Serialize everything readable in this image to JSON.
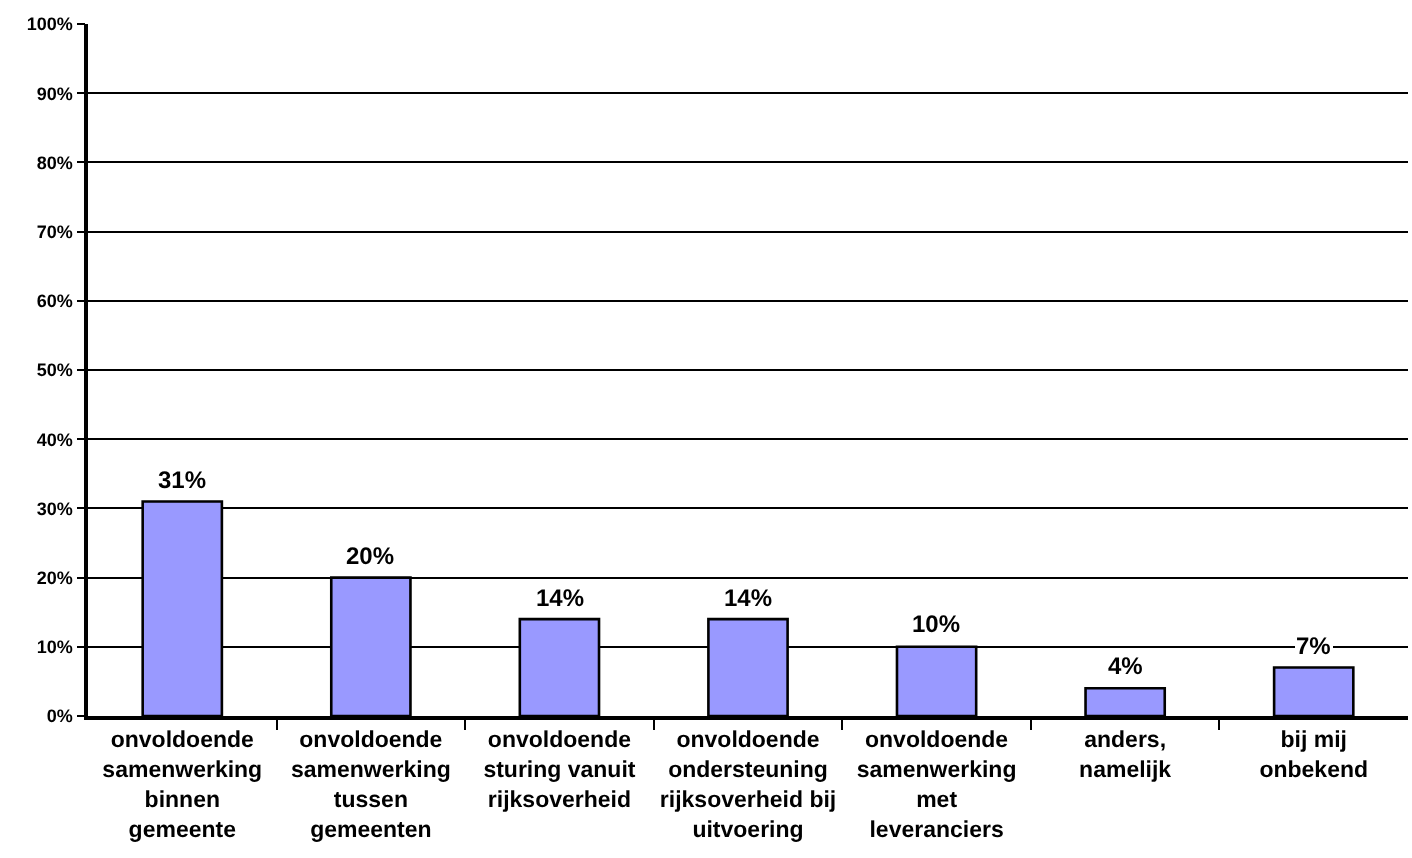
{
  "chart_data": {
    "type": "bar",
    "categories": [
      "onvoldoende\nsamenwerking\nbinnen\ngemeente",
      "onvoldoende\nsamenwerking\ntussen\ngemeenten",
      "onvoldoende\nsturing vanuit\nrijksoverheid",
      "onvoldoende\nondersteuning\nrijksoverheid bij\nuitvoering",
      "onvoldoende\nsamenwerking\nmet\nleveranciers",
      "anders,\nnamelijk",
      "bij mij\nonbekend"
    ],
    "values": [
      31,
      20,
      14,
      14,
      10,
      4,
      7
    ],
    "value_labels": [
      "31%",
      "20%",
      "14%",
      "14%",
      "10%",
      "4%",
      "7%"
    ],
    "color": "#9999ff",
    "ylim": [
      0,
      100
    ],
    "yticks": [
      {
        "value": 0,
        "label": "0%"
      },
      {
        "value": 10,
        "label": "10%"
      },
      {
        "value": 20,
        "label": "20%"
      },
      {
        "value": 30,
        "label": "30%"
      },
      {
        "value": 40,
        "label": "40%"
      },
      {
        "value": 50,
        "label": "50%"
      },
      {
        "value": 60,
        "label": "60%"
      },
      {
        "value": 70,
        "label": "70%"
      },
      {
        "value": 80,
        "label": "80%"
      },
      {
        "value": 90,
        "label": "90%"
      },
      {
        "value": 100,
        "label": "100%"
      }
    ],
    "grid": "y"
  }
}
